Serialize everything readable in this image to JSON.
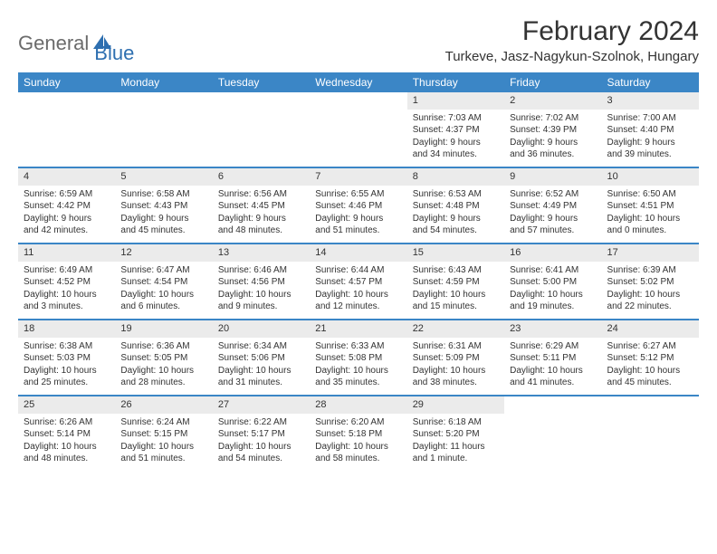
{
  "brand": {
    "part1": "General",
    "part2": "Blue"
  },
  "title": "February 2024",
  "location": "Turkeve, Jasz-Nagykun-Szolnok, Hungary",
  "colors": {
    "header_bar": "#3b86c6",
    "daynum_bg": "#ebebeb",
    "rule": "#3b86c6",
    "text": "#333333",
    "brand_gray": "#6b6b6b",
    "brand_blue": "#2e6fb0",
    "background": "#ffffff"
  },
  "fonts": {
    "title_size": 30,
    "location_size": 15,
    "dow_size": 12,
    "daynum_size": 11,
    "body_size": 10
  },
  "dow": [
    "Sunday",
    "Monday",
    "Tuesday",
    "Wednesday",
    "Thursday",
    "Friday",
    "Saturday"
  ],
  "weeks": [
    [
      {
        "n": "",
        "sr": "",
        "ss": "",
        "dl1": "",
        "dl2": ""
      },
      {
        "n": "",
        "sr": "",
        "ss": "",
        "dl1": "",
        "dl2": ""
      },
      {
        "n": "",
        "sr": "",
        "ss": "",
        "dl1": "",
        "dl2": ""
      },
      {
        "n": "",
        "sr": "",
        "ss": "",
        "dl1": "",
        "dl2": ""
      },
      {
        "n": "1",
        "sr": "Sunrise: 7:03 AM",
        "ss": "Sunset: 4:37 PM",
        "dl1": "Daylight: 9 hours",
        "dl2": "and 34 minutes."
      },
      {
        "n": "2",
        "sr": "Sunrise: 7:02 AM",
        "ss": "Sunset: 4:39 PM",
        "dl1": "Daylight: 9 hours",
        "dl2": "and 36 minutes."
      },
      {
        "n": "3",
        "sr": "Sunrise: 7:00 AM",
        "ss": "Sunset: 4:40 PM",
        "dl1": "Daylight: 9 hours",
        "dl2": "and 39 minutes."
      }
    ],
    [
      {
        "n": "4",
        "sr": "Sunrise: 6:59 AM",
        "ss": "Sunset: 4:42 PM",
        "dl1": "Daylight: 9 hours",
        "dl2": "and 42 minutes."
      },
      {
        "n": "5",
        "sr": "Sunrise: 6:58 AM",
        "ss": "Sunset: 4:43 PM",
        "dl1": "Daylight: 9 hours",
        "dl2": "and 45 minutes."
      },
      {
        "n": "6",
        "sr": "Sunrise: 6:56 AM",
        "ss": "Sunset: 4:45 PM",
        "dl1": "Daylight: 9 hours",
        "dl2": "and 48 minutes."
      },
      {
        "n": "7",
        "sr": "Sunrise: 6:55 AM",
        "ss": "Sunset: 4:46 PM",
        "dl1": "Daylight: 9 hours",
        "dl2": "and 51 minutes."
      },
      {
        "n": "8",
        "sr": "Sunrise: 6:53 AM",
        "ss": "Sunset: 4:48 PM",
        "dl1": "Daylight: 9 hours",
        "dl2": "and 54 minutes."
      },
      {
        "n": "9",
        "sr": "Sunrise: 6:52 AM",
        "ss": "Sunset: 4:49 PM",
        "dl1": "Daylight: 9 hours",
        "dl2": "and 57 minutes."
      },
      {
        "n": "10",
        "sr": "Sunrise: 6:50 AM",
        "ss": "Sunset: 4:51 PM",
        "dl1": "Daylight: 10 hours",
        "dl2": "and 0 minutes."
      }
    ],
    [
      {
        "n": "11",
        "sr": "Sunrise: 6:49 AM",
        "ss": "Sunset: 4:52 PM",
        "dl1": "Daylight: 10 hours",
        "dl2": "and 3 minutes."
      },
      {
        "n": "12",
        "sr": "Sunrise: 6:47 AM",
        "ss": "Sunset: 4:54 PM",
        "dl1": "Daylight: 10 hours",
        "dl2": "and 6 minutes."
      },
      {
        "n": "13",
        "sr": "Sunrise: 6:46 AM",
        "ss": "Sunset: 4:56 PM",
        "dl1": "Daylight: 10 hours",
        "dl2": "and 9 minutes."
      },
      {
        "n": "14",
        "sr": "Sunrise: 6:44 AM",
        "ss": "Sunset: 4:57 PM",
        "dl1": "Daylight: 10 hours",
        "dl2": "and 12 minutes."
      },
      {
        "n": "15",
        "sr": "Sunrise: 6:43 AM",
        "ss": "Sunset: 4:59 PM",
        "dl1": "Daylight: 10 hours",
        "dl2": "and 15 minutes."
      },
      {
        "n": "16",
        "sr": "Sunrise: 6:41 AM",
        "ss": "Sunset: 5:00 PM",
        "dl1": "Daylight: 10 hours",
        "dl2": "and 19 minutes."
      },
      {
        "n": "17",
        "sr": "Sunrise: 6:39 AM",
        "ss": "Sunset: 5:02 PM",
        "dl1": "Daylight: 10 hours",
        "dl2": "and 22 minutes."
      }
    ],
    [
      {
        "n": "18",
        "sr": "Sunrise: 6:38 AM",
        "ss": "Sunset: 5:03 PM",
        "dl1": "Daylight: 10 hours",
        "dl2": "and 25 minutes."
      },
      {
        "n": "19",
        "sr": "Sunrise: 6:36 AM",
        "ss": "Sunset: 5:05 PM",
        "dl1": "Daylight: 10 hours",
        "dl2": "and 28 minutes."
      },
      {
        "n": "20",
        "sr": "Sunrise: 6:34 AM",
        "ss": "Sunset: 5:06 PM",
        "dl1": "Daylight: 10 hours",
        "dl2": "and 31 minutes."
      },
      {
        "n": "21",
        "sr": "Sunrise: 6:33 AM",
        "ss": "Sunset: 5:08 PM",
        "dl1": "Daylight: 10 hours",
        "dl2": "and 35 minutes."
      },
      {
        "n": "22",
        "sr": "Sunrise: 6:31 AM",
        "ss": "Sunset: 5:09 PM",
        "dl1": "Daylight: 10 hours",
        "dl2": "and 38 minutes."
      },
      {
        "n": "23",
        "sr": "Sunrise: 6:29 AM",
        "ss": "Sunset: 5:11 PM",
        "dl1": "Daylight: 10 hours",
        "dl2": "and 41 minutes."
      },
      {
        "n": "24",
        "sr": "Sunrise: 6:27 AM",
        "ss": "Sunset: 5:12 PM",
        "dl1": "Daylight: 10 hours",
        "dl2": "and 45 minutes."
      }
    ],
    [
      {
        "n": "25",
        "sr": "Sunrise: 6:26 AM",
        "ss": "Sunset: 5:14 PM",
        "dl1": "Daylight: 10 hours",
        "dl2": "and 48 minutes."
      },
      {
        "n": "26",
        "sr": "Sunrise: 6:24 AM",
        "ss": "Sunset: 5:15 PM",
        "dl1": "Daylight: 10 hours",
        "dl2": "and 51 minutes."
      },
      {
        "n": "27",
        "sr": "Sunrise: 6:22 AM",
        "ss": "Sunset: 5:17 PM",
        "dl1": "Daylight: 10 hours",
        "dl2": "and 54 minutes."
      },
      {
        "n": "28",
        "sr": "Sunrise: 6:20 AM",
        "ss": "Sunset: 5:18 PM",
        "dl1": "Daylight: 10 hours",
        "dl2": "and 58 minutes."
      },
      {
        "n": "29",
        "sr": "Sunrise: 6:18 AM",
        "ss": "Sunset: 5:20 PM",
        "dl1": "Daylight: 11 hours",
        "dl2": "and 1 minute."
      },
      {
        "n": "",
        "sr": "",
        "ss": "",
        "dl1": "",
        "dl2": ""
      },
      {
        "n": "",
        "sr": "",
        "ss": "",
        "dl1": "",
        "dl2": ""
      }
    ]
  ]
}
